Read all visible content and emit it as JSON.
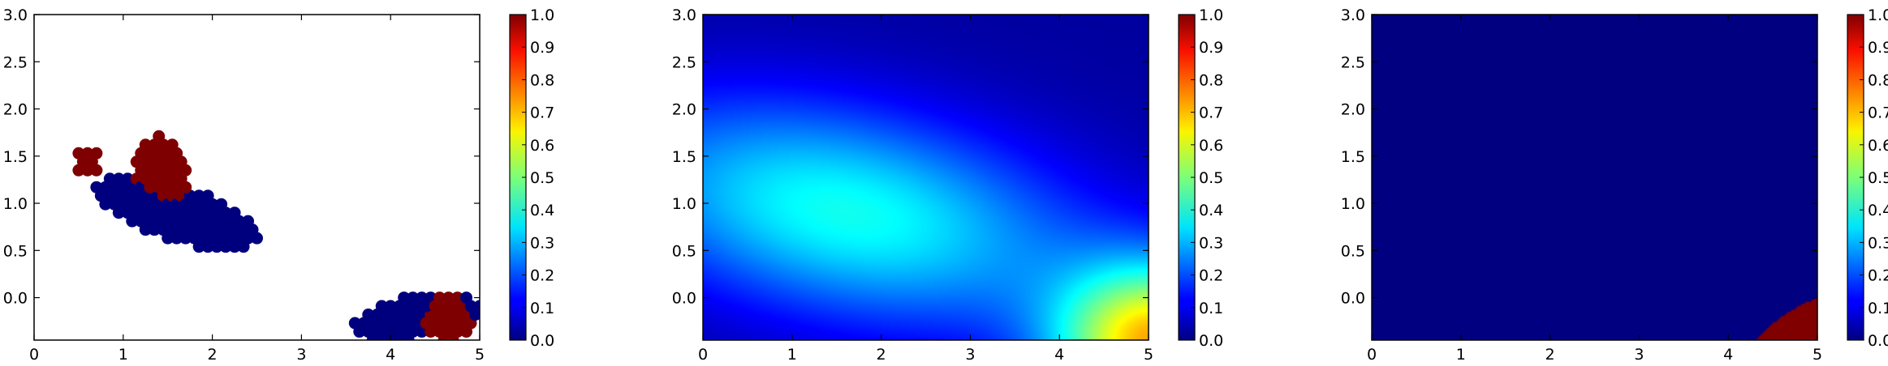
{
  "chart_data": [
    {
      "type": "scatter",
      "xlim": [
        0,
        5
      ],
      "ylim": [
        -0.45,
        3.0
      ],
      "xticks": [
        "0",
        "1",
        "2",
        "3",
        "4",
        "5"
      ],
      "yticks": [
        "0.0",
        "0.5",
        "1.0",
        "1.5",
        "2.0",
        "2.5",
        "3.0"
      ],
      "colorbar": {
        "range": [
          0,
          1
        ],
        "ticks": [
          "0.0",
          "0.1",
          "0.2",
          "0.3",
          "0.4",
          "0.5",
          "0.6",
          "0.7",
          "0.8",
          "0.9",
          "1.0"
        ],
        "colormap": "jet"
      },
      "grid": false,
      "point_colors": {
        "0": "#00007f",
        "1": "#7f0000"
      },
      "regions": [
        {
          "label": 0,
          "shape": "ellipse",
          "cx": 1.6,
          "cy": 0.9,
          "rx": 0.95,
          "ry": 0.3,
          "angle_deg": -17
        },
        {
          "label": 0,
          "shape": "ellipse",
          "cx": 4.3,
          "cy": -0.2,
          "rx": 0.72,
          "ry": 0.24,
          "angle_deg": 10
        },
        {
          "label": 1,
          "shape": "circle",
          "cx": 0.6,
          "cy": 1.45,
          "r": 0.15
        },
        {
          "label": 1,
          "shape": "ellipse",
          "cx": 1.4,
          "cy": 1.42,
          "rx": 0.3,
          "ry": 0.3,
          "angle_deg": 0
        },
        {
          "label": 1,
          "shape": "ellipse",
          "cx": 1.55,
          "cy": 1.25,
          "rx": 0.17,
          "ry": 0.22,
          "angle_deg": 0
        },
        {
          "label": 1,
          "shape": "circle",
          "cx": 4.65,
          "cy": -0.2,
          "r": 0.27
        }
      ]
    },
    {
      "type": "heatmap",
      "xlim": [
        0,
        5
      ],
      "ylim": [
        -0.45,
        3.0
      ],
      "xticks": [
        "0",
        "1",
        "2",
        "3",
        "4",
        "5"
      ],
      "yticks": [
        "0.0",
        "0.5",
        "1.0",
        "1.5",
        "2.0",
        "2.5",
        "3.0"
      ],
      "colorbar": {
        "range": [
          0,
          1
        ],
        "ticks": [
          "0.0",
          "0.1",
          "0.2",
          "0.3",
          "0.4",
          "0.5",
          "0.6",
          "0.7",
          "0.8",
          "0.9",
          "1.0"
        ],
        "colormap": "jet"
      },
      "grid": false,
      "field": {
        "base": 0.03,
        "bumps": [
          {
            "cx": 1.6,
            "cy": 0.9,
            "sx": 1.9,
            "sy": 0.85,
            "rho": -0.35,
            "amp": 0.36
          },
          {
            "cx": 5.1,
            "cy": -0.5,
            "sx": 0.8,
            "sy": 0.6,
            "rho": 0.0,
            "amp": 0.65
          }
        ]
      }
    },
    {
      "type": "heatmap",
      "xlim": [
        0,
        5
      ],
      "ylim": [
        -0.45,
        3.0
      ],
      "xticks": [
        "0",
        "1",
        "2",
        "3",
        "4",
        "5"
      ],
      "yticks": [
        "0.0",
        "0.5",
        "1.0",
        "1.5",
        "2.0",
        "2.5",
        "3.0"
      ],
      "colorbar": {
        "range": [
          0,
          1
        ],
        "ticks": [
          "0.0",
          "0.1",
          "0.2",
          "0.3",
          "0.4",
          "0.5",
          "0.6",
          "0.7",
          "0.8",
          "0.9",
          "1.0"
        ],
        "colormap": "jet"
      },
      "grid": false,
      "field": {
        "background_value": 0.0,
        "regions": [
          {
            "value": 1.0,
            "shape": "circle",
            "cx": 5.6,
            "cy": -1.7,
            "r": 1.8
          }
        ]
      }
    }
  ]
}
